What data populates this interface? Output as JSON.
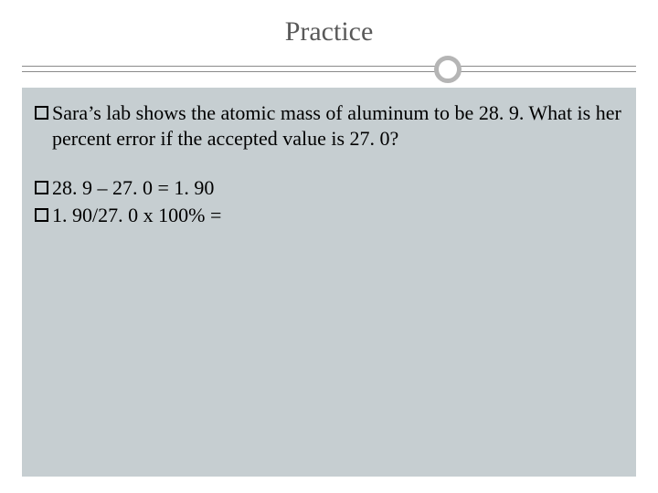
{
  "slide": {
    "title": "Practice",
    "title_color": "#595959",
    "title_fontsize": 30,
    "background_color": "#ffffff",
    "content_background": "#c6ced1",
    "divider_color": "#8a8a8a",
    "circle_border_color": "#b5b5b5",
    "body_fontsize": 22,
    "body_color": "#000000",
    "items": [
      {
        "text": "Sara’s lab shows the atomic mass of aluminum to be 28. 9. What is her percent error if the accepted value is 27. 0?"
      },
      {
        "text": "28. 9 – 27. 0 = 1. 90"
      },
      {
        "text": "1. 90/27. 0 x 100% ="
      }
    ]
  }
}
